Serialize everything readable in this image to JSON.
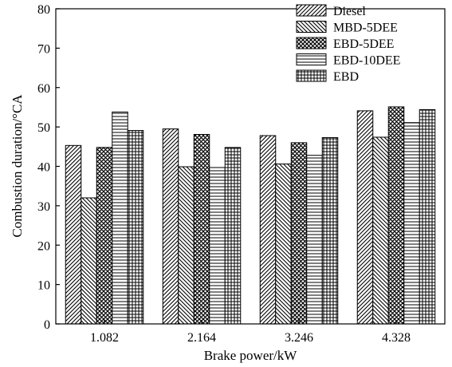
{
  "chart_data": {
    "type": "bar",
    "title": "",
    "xlabel": "Brake power/kW",
    "ylabel": "Combustion duration/°CA",
    "ylim": [
      0,
      80
    ],
    "yticks": [
      0,
      10,
      20,
      30,
      40,
      50,
      60,
      70,
      80
    ],
    "categories": [
      "1.082",
      "2.164",
      "3.246",
      "4.328"
    ],
    "series": [
      {
        "name": "Diesel",
        "pattern": "diag-up",
        "values": [
          45.3,
          49.5,
          47.8,
          54.1
        ]
      },
      {
        "name": "MBD-5DEE",
        "pattern": "diag-down",
        "values": [
          32.0,
          39.9,
          40.6,
          47.4
        ]
      },
      {
        "name": "EBD-5DEE",
        "pattern": "crosshatch",
        "values": [
          44.8,
          48.1,
          46.0,
          55.1
        ]
      },
      {
        "name": "EBD-10DEE",
        "pattern": "horizontal",
        "values": [
          53.8,
          39.7,
          42.8,
          51.1
        ]
      },
      {
        "name": "EBD",
        "pattern": "grid",
        "values": [
          49.1,
          44.8,
          47.3,
          54.4
        ]
      }
    ],
    "legend": "top-right",
    "grid": false
  }
}
